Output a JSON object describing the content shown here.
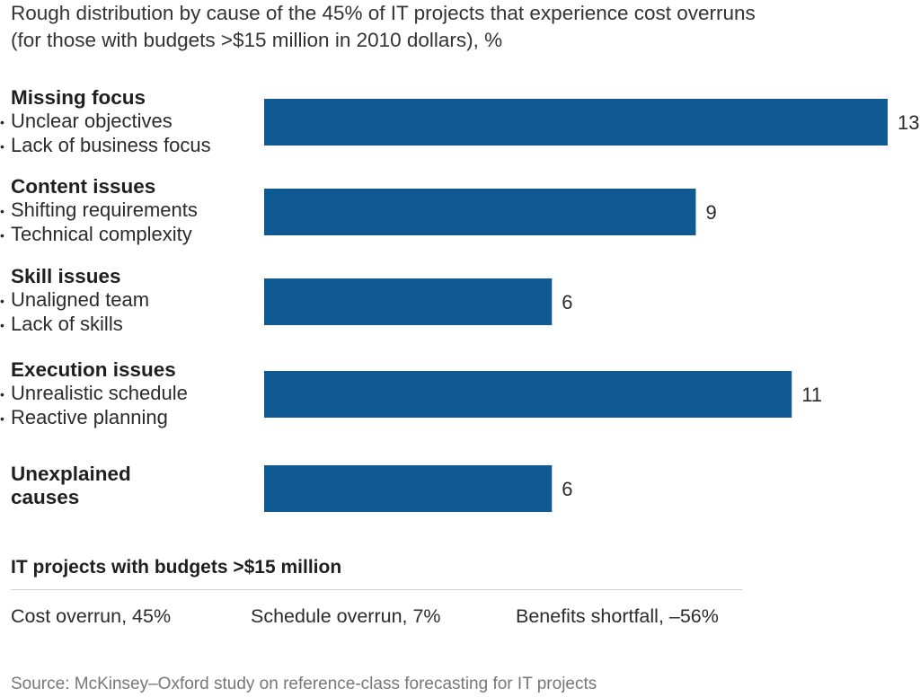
{
  "chart_data": {
    "type": "bar",
    "orientation": "horizontal",
    "title": [
      "Rough distribution by cause of the 45% of IT projects that experience cost overruns",
      "(for those with budgets >$15 million in 2010 dollars), %"
    ],
    "categories": [
      {
        "name": "Missing focus",
        "subitems": [
          "Unclear objectives",
          "Lack of business focus"
        ]
      },
      {
        "name": "Content issues",
        "subitems": [
          "Shifting requirements",
          "Technical complexity"
        ]
      },
      {
        "name": "Skill issues",
        "subitems": [
          "Unaligned team",
          "Lack of skills"
        ]
      },
      {
        "name": "Execution issues",
        "subitems": [
          "Unrealistic schedule",
          "Reactive planning"
        ]
      },
      {
        "name": "Unexplained causes",
        "name_lines": [
          "Unexplained",
          "causes"
        ],
        "subitems": []
      }
    ],
    "values": [
      13,
      9,
      6,
      11,
      6
    ],
    "value_labels": [
      "13",
      "9",
      "6",
      "11",
      "6"
    ],
    "xlim": [
      0,
      13
    ],
    "bar_color": "#0f5a92",
    "grid": false,
    "legend": "none"
  },
  "summary": {
    "title": "IT projects with budgets >$15 million",
    "metrics": [
      "Cost overrun, 45%",
      "Schedule overrun, 7%",
      "Benefits shortfall, –56%"
    ]
  },
  "source": "Source: McKinsey–Oxford study on reference-class forecasting for IT projects"
}
